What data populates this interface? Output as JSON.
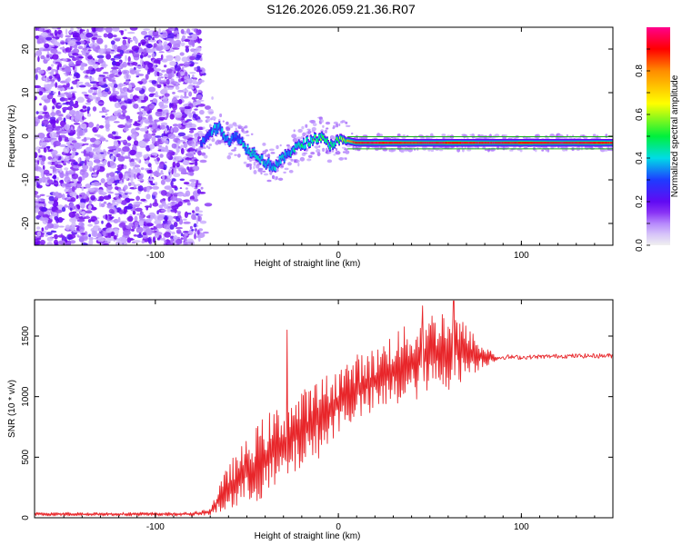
{
  "title": "S126.2026.059.21.36.R07",
  "chart_data": [
    {
      "type": "heatmap",
      "title": "S126.2026.059.21.36.R07",
      "xlabel": "Height of straight line (km)",
      "ylabel": "Frequency (Hz)",
      "xlim": [
        -166,
        150
      ],
      "ylim": [
        -25,
        25
      ],
      "xticks": [
        -100,
        0,
        100
      ],
      "yticks": [
        -20,
        -10,
        0,
        10,
        20
      ],
      "xtick_labels": [
        "-100",
        "0",
        "100"
      ],
      "ytick_labels": [
        "-20",
        "-10",
        "0",
        "10",
        "20"
      ],
      "colorbar": {
        "label": "Normalized spectral amplitude",
        "range": [
          0,
          1
        ],
        "ticks": [
          0.0,
          0.2,
          0.4,
          0.6,
          0.8
        ],
        "tick_labels": [
          "0.0",
          "0.2",
          "0.4",
          "0.6",
          "0.8"
        ]
      },
      "noise_region": {
        "x_from": -166,
        "x_to": -75,
        "description": "scattered low-amplitude noise"
      },
      "track": {
        "x": [
          -75,
          -70,
          -65,
          -60,
          -55,
          -50,
          -45,
          -40,
          -35,
          -30,
          -25,
          -20,
          -15,
          -10,
          -5,
          0,
          5,
          10,
          20,
          30,
          40,
          50,
          60,
          80,
          100,
          120,
          150
        ],
        "y": [
          -2,
          1,
          2,
          -1,
          0,
          -3,
          -4,
          -6,
          -7,
          -5,
          -3,
          -2,
          -1,
          0,
          -2,
          -1,
          -1,
          -1.5,
          -1.5,
          -1.5,
          -1.5,
          -1.5,
          -1.5,
          -1.5,
          -1.5,
          -1.5,
          -1.5
        ],
        "amp": [
          0.3,
          0.35,
          0.4,
          0.35,
          0.35,
          0.4,
          0.4,
          0.4,
          0.4,
          0.4,
          0.4,
          0.45,
          0.5,
          0.55,
          0.5,
          0.55,
          0.75,
          0.9,
          0.95,
          0.92,
          0.9,
          0.95,
          0.9,
          0.95,
          0.9,
          0.93,
          0.9
        ]
      },
      "reference_lines_hz": [
        -1.5
      ]
    },
    {
      "type": "line",
      "xlabel": "Height of straight line (km)",
      "ylabel": "SNR (10 * v/v)",
      "xlim": [
        -166,
        150
      ],
      "ylim": [
        0,
        1800
      ],
      "xticks": [
        -100,
        0,
        100
      ],
      "yticks": [
        0,
        500,
        1000,
        1500
      ],
      "xtick_labels": [
        "-100",
        "0",
        "100"
      ],
      "ytick_labels": [
        "0",
        "500",
        "1000",
        "1500"
      ],
      "series": [
        {
          "name": "SNR",
          "color": "#e8262a",
          "envelope_x": [
            -166,
            -80,
            -70,
            -60,
            -50,
            -40,
            -30,
            -20,
            -10,
            0,
            10,
            20,
            30,
            40,
            50,
            60,
            70,
            80,
            90,
            100,
            120,
            150
          ],
          "envelope_lo": [
            15,
            15,
            20,
            50,
            100,
            150,
            250,
            400,
            500,
            700,
            800,
            850,
            900,
            950,
            1000,
            1050,
            1150,
            1250,
            1300,
            1300,
            1310,
            1310
          ],
          "envelope_hi": [
            45,
            45,
            80,
            450,
            650,
            850,
            950,
            1050,
            1150,
            1250,
            1350,
            1400,
            1550,
            1600,
            1700,
            1750,
            1600,
            1400,
            1380,
            1370,
            1380,
            1390
          ],
          "spikes": [
            {
              "x": -28,
              "y": 1550
            },
            {
              "x": 63,
              "y": 1790
            },
            {
              "x": 46,
              "y": 1750
            }
          ]
        }
      ]
    }
  ]
}
